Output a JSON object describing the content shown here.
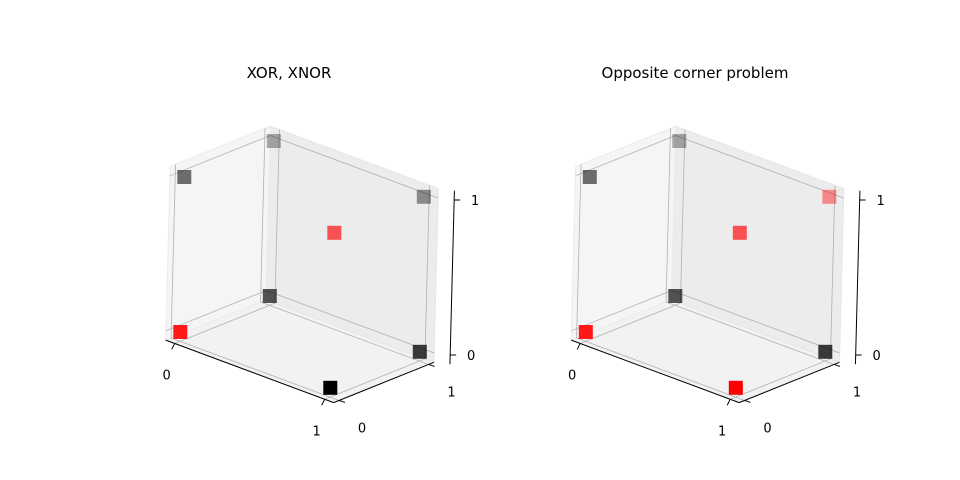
{
  "chart_data": [
    {
      "type": "scatter",
      "projection": "3d",
      "title": "XOR, XNOR",
      "xlabel": "",
      "ylabel": "",
      "zlabel": "",
      "xlim": [
        0,
        1
      ],
      "ylim": [
        0,
        1
      ],
      "zlim": [
        0,
        1
      ],
      "xticks": [
        "0",
        "1"
      ],
      "yticks": [
        "0",
        "1"
      ],
      "zticks": [
        "0",
        "1"
      ],
      "grid": true,
      "points": [
        {
          "x": 0,
          "y": 0,
          "z": 0,
          "color": "#ff0000"
        },
        {
          "x": 1,
          "y": 0,
          "z": 0,
          "color": "#000000"
        },
        {
          "x": 1,
          "y": 1,
          "z": 0,
          "color": "#000000"
        },
        {
          "x": 0,
          "y": 1,
          "z": 0,
          "color": "#000000"
        },
        {
          "x": 0,
          "y": 0,
          "z": 1,
          "color": "#000000"
        },
        {
          "x": 1,
          "y": 0,
          "z": 1,
          "color": "#ff0000"
        },
        {
          "x": 1,
          "y": 1,
          "z": 1,
          "color": "#000000"
        },
        {
          "x": 0,
          "y": 1,
          "z": 1,
          "color": "#000000"
        }
      ]
    },
    {
      "type": "scatter",
      "projection": "3d",
      "title": "Opposite corner problem",
      "xlabel": "",
      "ylabel": "",
      "zlabel": "",
      "xlim": [
        0,
        1
      ],
      "ylim": [
        0,
        1
      ],
      "zlim": [
        0,
        1
      ],
      "xticks": [
        "0",
        "1"
      ],
      "yticks": [
        "0",
        "1"
      ],
      "zticks": [
        "0",
        "1"
      ],
      "grid": true,
      "points": [
        {
          "x": 0,
          "y": 0,
          "z": 0,
          "color": "#ff0000"
        },
        {
          "x": 1,
          "y": 0,
          "z": 0,
          "color": "#ff0000"
        },
        {
          "x": 1,
          "y": 1,
          "z": 0,
          "color": "#000000"
        },
        {
          "x": 0,
          "y": 1,
          "z": 0,
          "color": "#000000"
        },
        {
          "x": 0,
          "y": 0,
          "z": 1,
          "color": "#000000"
        },
        {
          "x": 1,
          "y": 0,
          "z": 1,
          "color": "#ff0000"
        },
        {
          "x": 1,
          "y": 1,
          "z": 1,
          "color": "#ff0000"
        },
        {
          "x": 0,
          "y": 1,
          "z": 1,
          "color": "#000000"
        }
      ]
    }
  ]
}
